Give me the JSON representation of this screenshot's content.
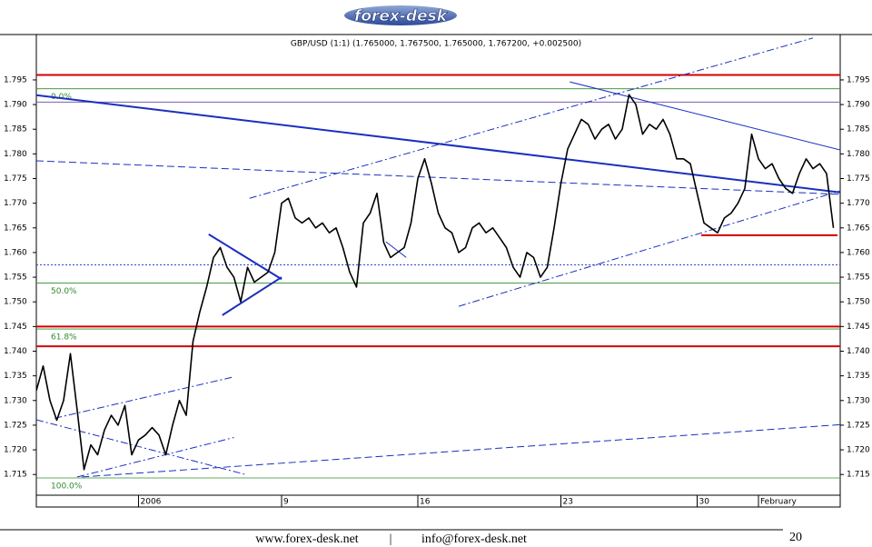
{
  "header": {
    "logo": "forex-desk"
  },
  "chart_data": {
    "type": "line",
    "title": "GBP/USD (1:1) (1.765000, 1.767500, 1.765000, 1.767200, +0.002500)",
    "x": [
      0,
      1,
      2,
      3,
      4,
      5,
      6,
      7,
      8,
      9,
      10,
      11,
      12,
      13,
      14,
      15,
      16,
      17,
      18,
      19,
      20,
      21,
      22,
      23,
      24,
      25,
      26,
      27,
      28,
      29,
      30,
      31,
      32,
      33,
      34,
      35,
      36,
      37,
      38,
      39,
      40,
      41,
      42,
      43,
      44,
      45,
      46,
      47,
      48,
      49,
      50,
      51,
      52,
      53,
      54,
      55,
      56,
      57,
      58,
      59,
      60,
      61,
      62,
      63,
      64,
      65,
      66,
      67,
      68,
      69,
      70,
      71,
      72,
      73,
      74,
      75,
      76,
      77,
      78,
      79,
      80,
      81,
      82,
      83,
      84,
      85,
      86,
      87,
      88,
      89,
      90,
      91,
      92,
      93,
      94,
      95,
      96,
      97,
      98,
      99,
      100,
      101,
      102,
      103,
      104,
      105,
      106,
      107,
      108,
      109,
      110,
      111,
      112,
      113,
      114,
      115,
      116,
      117
    ],
    "values": [
      1.732,
      1.737,
      1.73,
      1.726,
      1.73,
      1.7395,
      1.728,
      1.716,
      1.721,
      1.719,
      1.724,
      1.727,
      1.725,
      1.729,
      1.719,
      1.722,
      1.723,
      1.7245,
      1.723,
      1.719,
      1.725,
      1.73,
      1.727,
      1.742,
      1.748,
      1.753,
      1.759,
      1.761,
      1.757,
      1.755,
      1.75,
      1.757,
      1.754,
      1.755,
      1.756,
      1.76,
      1.77,
      1.771,
      1.767,
      1.766,
      1.767,
      1.765,
      1.766,
      1.764,
      1.765,
      1.761,
      1.756,
      1.753,
      1.766,
      1.768,
      1.772,
      1.762,
      1.759,
      1.76,
      1.761,
      1.766,
      1.775,
      1.779,
      1.774,
      1.768,
      1.765,
      1.764,
      1.76,
      1.761,
      1.765,
      1.766,
      1.764,
      1.765,
      1.763,
      1.761,
      1.757,
      1.755,
      1.76,
      1.759,
      1.755,
      1.757,
      1.765,
      1.774,
      1.781,
      1.784,
      1.787,
      1.786,
      1.783,
      1.785,
      1.786,
      1.783,
      1.785,
      1.792,
      1.79,
      1.784,
      1.786,
      1.785,
      1.787,
      1.784,
      1.779,
      1.779,
      1.778,
      1.772,
      1.766,
      1.765,
      1.764,
      1.767,
      1.768,
      1.77,
      1.773,
      1.784,
      1.779,
      1.777,
      1.778,
      1.775,
      1.773,
      1.772,
      1.776,
      1.779,
      1.777,
      1.778,
      1.776,
      1.765
    ],
    "color": "#000000",
    "xlim": [
      0,
      118
    ],
    "xticks": [
      {
        "value": 15,
        "label": "2006"
      },
      {
        "value": 36,
        "label": "9"
      },
      {
        "value": 56,
        "label": "16"
      },
      {
        "value": 77,
        "label": "23"
      },
      {
        "value": 97,
        "label": "30"
      },
      {
        "value": 106,
        "label": "February"
      }
    ],
    "ylim": [
      1.7108,
      1.8042
    ],
    "yticks": [
      1.715,
      {
        "value": 1.72,
        "label": "1.720"
      },
      1.725,
      {
        "value": 1.73,
        "label": "1.730"
      },
      1.735,
      {
        "value": 1.74,
        "label": "1.740"
      },
      1.745,
      {
        "value": 1.75,
        "label": "1.750"
      },
      1.755,
      {
        "value": 1.76,
        "label": "1.760"
      },
      1.765,
      {
        "value": 1.77,
        "label": "1.770"
      },
      1.775,
      {
        "value": 1.78,
        "label": "1.780"
      },
      1.785,
      {
        "value": 1.79,
        "label": "1.790"
      },
      1.795
    ],
    "fib_levels": [
      {
        "label": "0.0%",
        "value": 1.7932,
        "color": "#2e8b2e"
      },
      {
        "label": "50.0%",
        "value": 1.7538,
        "color": "#2e8b2e"
      },
      {
        "label": "61.8%",
        "value": 1.7445,
        "color": "#2e8b2e"
      },
      {
        "label": "100.0%",
        "value": 1.7143,
        "color": "#2e8b2e"
      }
    ],
    "lines": [
      {
        "x": [
          0,
          118
        ],
        "y": [
          1.796,
          1.796
        ],
        "color": "#d40000",
        "style": "thick"
      },
      {
        "x": [
          0,
          118
        ],
        "y": [
          1.745,
          1.745
        ],
        "color": "#d40000",
        "style": "thick"
      },
      {
        "x": [
          0,
          118
        ],
        "y": [
          1.741,
          1.741
        ],
        "color": "#d40000",
        "style": "thick"
      },
      {
        "x": [
          97.6,
          117.6
        ],
        "y": [
          1.7635,
          1.7635
        ],
        "color": "#d40000",
        "style": "thick"
      },
      {
        "x": [
          0,
          118
        ],
        "y": [
          1.7905,
          1.7905
        ],
        "color": "#7a5fb0",
        "style": "solid"
      },
      {
        "x": [
          0,
          118
        ],
        "y": [
          1.7575,
          1.7575
        ],
        "color": "#3344cc",
        "style": "dotted"
      },
      {
        "x": [
          0,
          118
        ],
        "y": [
          1.7919,
          1.7722
        ],
        "color": "#1a2fbf",
        "style": "thick"
      },
      {
        "x": [
          0,
          118
        ],
        "y": [
          1.7786,
          1.7718
        ],
        "color": "#1a2fbf",
        "style": "dashed"
      },
      {
        "x": [
          31.3,
          114
        ],
        "y": [
          1.771,
          1.8035
        ],
        "color": "#1a2fbf",
        "style": "dashdot"
      },
      {
        "x": [
          62,
          118
        ],
        "y": [
          1.7491,
          1.7725
        ],
        "color": "#1a2fbf",
        "style": "dashdot"
      },
      {
        "x": [
          6.7,
          118
        ],
        "y": [
          1.7145,
          1.7251
        ],
        "color": "#1a2fbf",
        "style": "dashed"
      },
      {
        "x": [
          2.7,
          28.7
        ],
        "y": [
          1.7264,
          1.7347
        ],
        "color": "#1a2fbf",
        "style": "dashdot"
      },
      {
        "x": [
          0,
          30.7
        ],
        "y": [
          1.7261,
          1.715
        ],
        "color": "#1a2fbf",
        "style": "dashdot"
      },
      {
        "x": [
          6,
          29
        ],
        "y": [
          1.7145,
          1.7225
        ],
        "color": "#1a2fbf",
        "style": "dashdot"
      },
      {
        "x": [
          78.3,
          118
        ],
        "y": [
          1.7946,
          1.7808
        ],
        "color": "#1a2fbf",
        "style": "solid"
      },
      {
        "x": [
          25.3,
          36
        ],
        "y": [
          1.7637,
          1.7546
        ],
        "color": "#1a2fbf",
        "style": "thick"
      },
      {
        "x": [
          27.3,
          36
        ],
        "y": [
          1.7473,
          1.755
        ],
        "color": "#1a2fbf",
        "style": "thick"
      },
      {
        "x": [
          51.3,
          54.3
        ],
        "y": [
          1.7622,
          1.759
        ],
        "color": "#1a2fbf",
        "style": "solid"
      }
    ]
  },
  "footer": {
    "website": "www.forex-desk.net",
    "separator": "|",
    "email": "info@forex-desk.net",
    "page": "20"
  }
}
